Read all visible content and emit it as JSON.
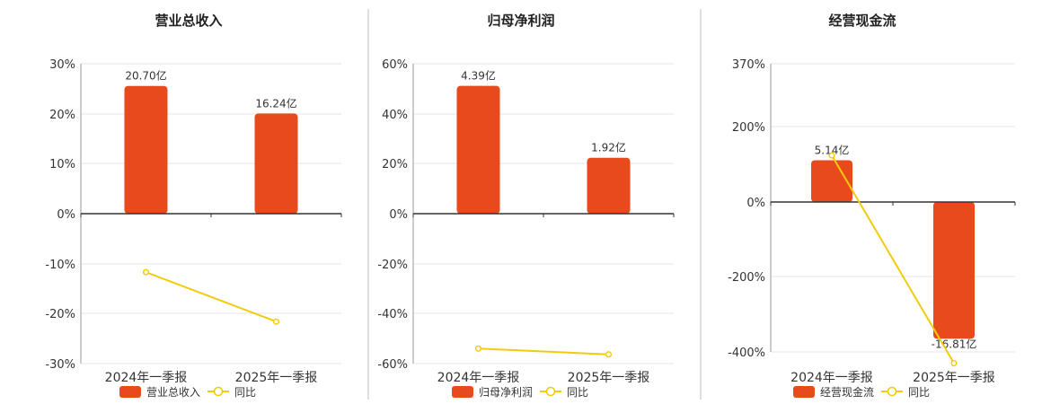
{
  "colors": {
    "bar": "#e84a1c",
    "line": "#f2cc0c",
    "grid": "#e6e6e6",
    "axis": "#333333",
    "divider": "#bdbdbd",
    "text": "#333333"
  },
  "chart_data": [
    {
      "type": "bar",
      "title": "营业总收入",
      "categories": [
        "2024年一季报",
        "2025年一季报"
      ],
      "series": [
        {
          "name": "营业总收入",
          "type": "bar",
          "values": [
            20.7,
            16.24
          ],
          "labels": [
            "20.70亿",
            "16.24亿"
          ],
          "unit": "亿"
        },
        {
          "name": "同比",
          "type": "line",
          "values": [
            -11.7,
            -21.6
          ]
        }
      ],
      "ylim": [
        -30,
        30
      ],
      "yticks": [
        30,
        20,
        10,
        0,
        -10,
        -20,
        -30
      ],
      "ytick_labels": [
        "30%",
        "20%",
        "10%",
        "0%",
        "-10%",
        "-20%",
        "-30%"
      ],
      "bar_axis_max": 24.3,
      "grid": true,
      "legend": "bottom"
    },
    {
      "type": "bar",
      "title": "归母净利润",
      "categories": [
        "2024年一季报",
        "2025年一季报"
      ],
      "series": [
        {
          "name": "归母净利润",
          "type": "bar",
          "values": [
            4.39,
            1.92
          ],
          "labels": [
            "4.39亿",
            "1.92亿"
          ],
          "unit": "亿"
        },
        {
          "name": "同比",
          "type": "line",
          "values": [
            -54.0,
            -56.3
          ]
        }
      ],
      "ylim": [
        -60,
        60
      ],
      "yticks": [
        60,
        40,
        20,
        0,
        -20,
        -40,
        -60
      ],
      "ytick_labels": [
        "60%",
        "40%",
        "20%",
        "0%",
        "-20%",
        "-40%",
        "-60%"
      ],
      "bar_axis_max": 5.15,
      "grid": true,
      "legend": "bottom"
    },
    {
      "type": "bar",
      "title": "经营现金流",
      "categories": [
        "2024年一季报",
        "2025年一季报"
      ],
      "series": [
        {
          "name": "经营现金流",
          "type": "bar",
          "values": [
            5.14,
            -16.81
          ],
          "labels": [
            "5.14亿",
            "-16.81亿"
          ],
          "unit": "亿"
        },
        {
          "name": "同比",
          "type": "line",
          "values": [
            125,
            -430
          ]
        }
      ],
      "ylim": [
        -430,
        370
      ],
      "yticks": [
        370,
        200,
        0,
        -200,
        -400
      ],
      "ytick_labels": [
        "370%",
        "200%",
        "0%",
        "-200%",
        "-400%"
      ],
      "bar_axis_max": 17.0,
      "grid": true,
      "legend": "bottom"
    }
  ]
}
